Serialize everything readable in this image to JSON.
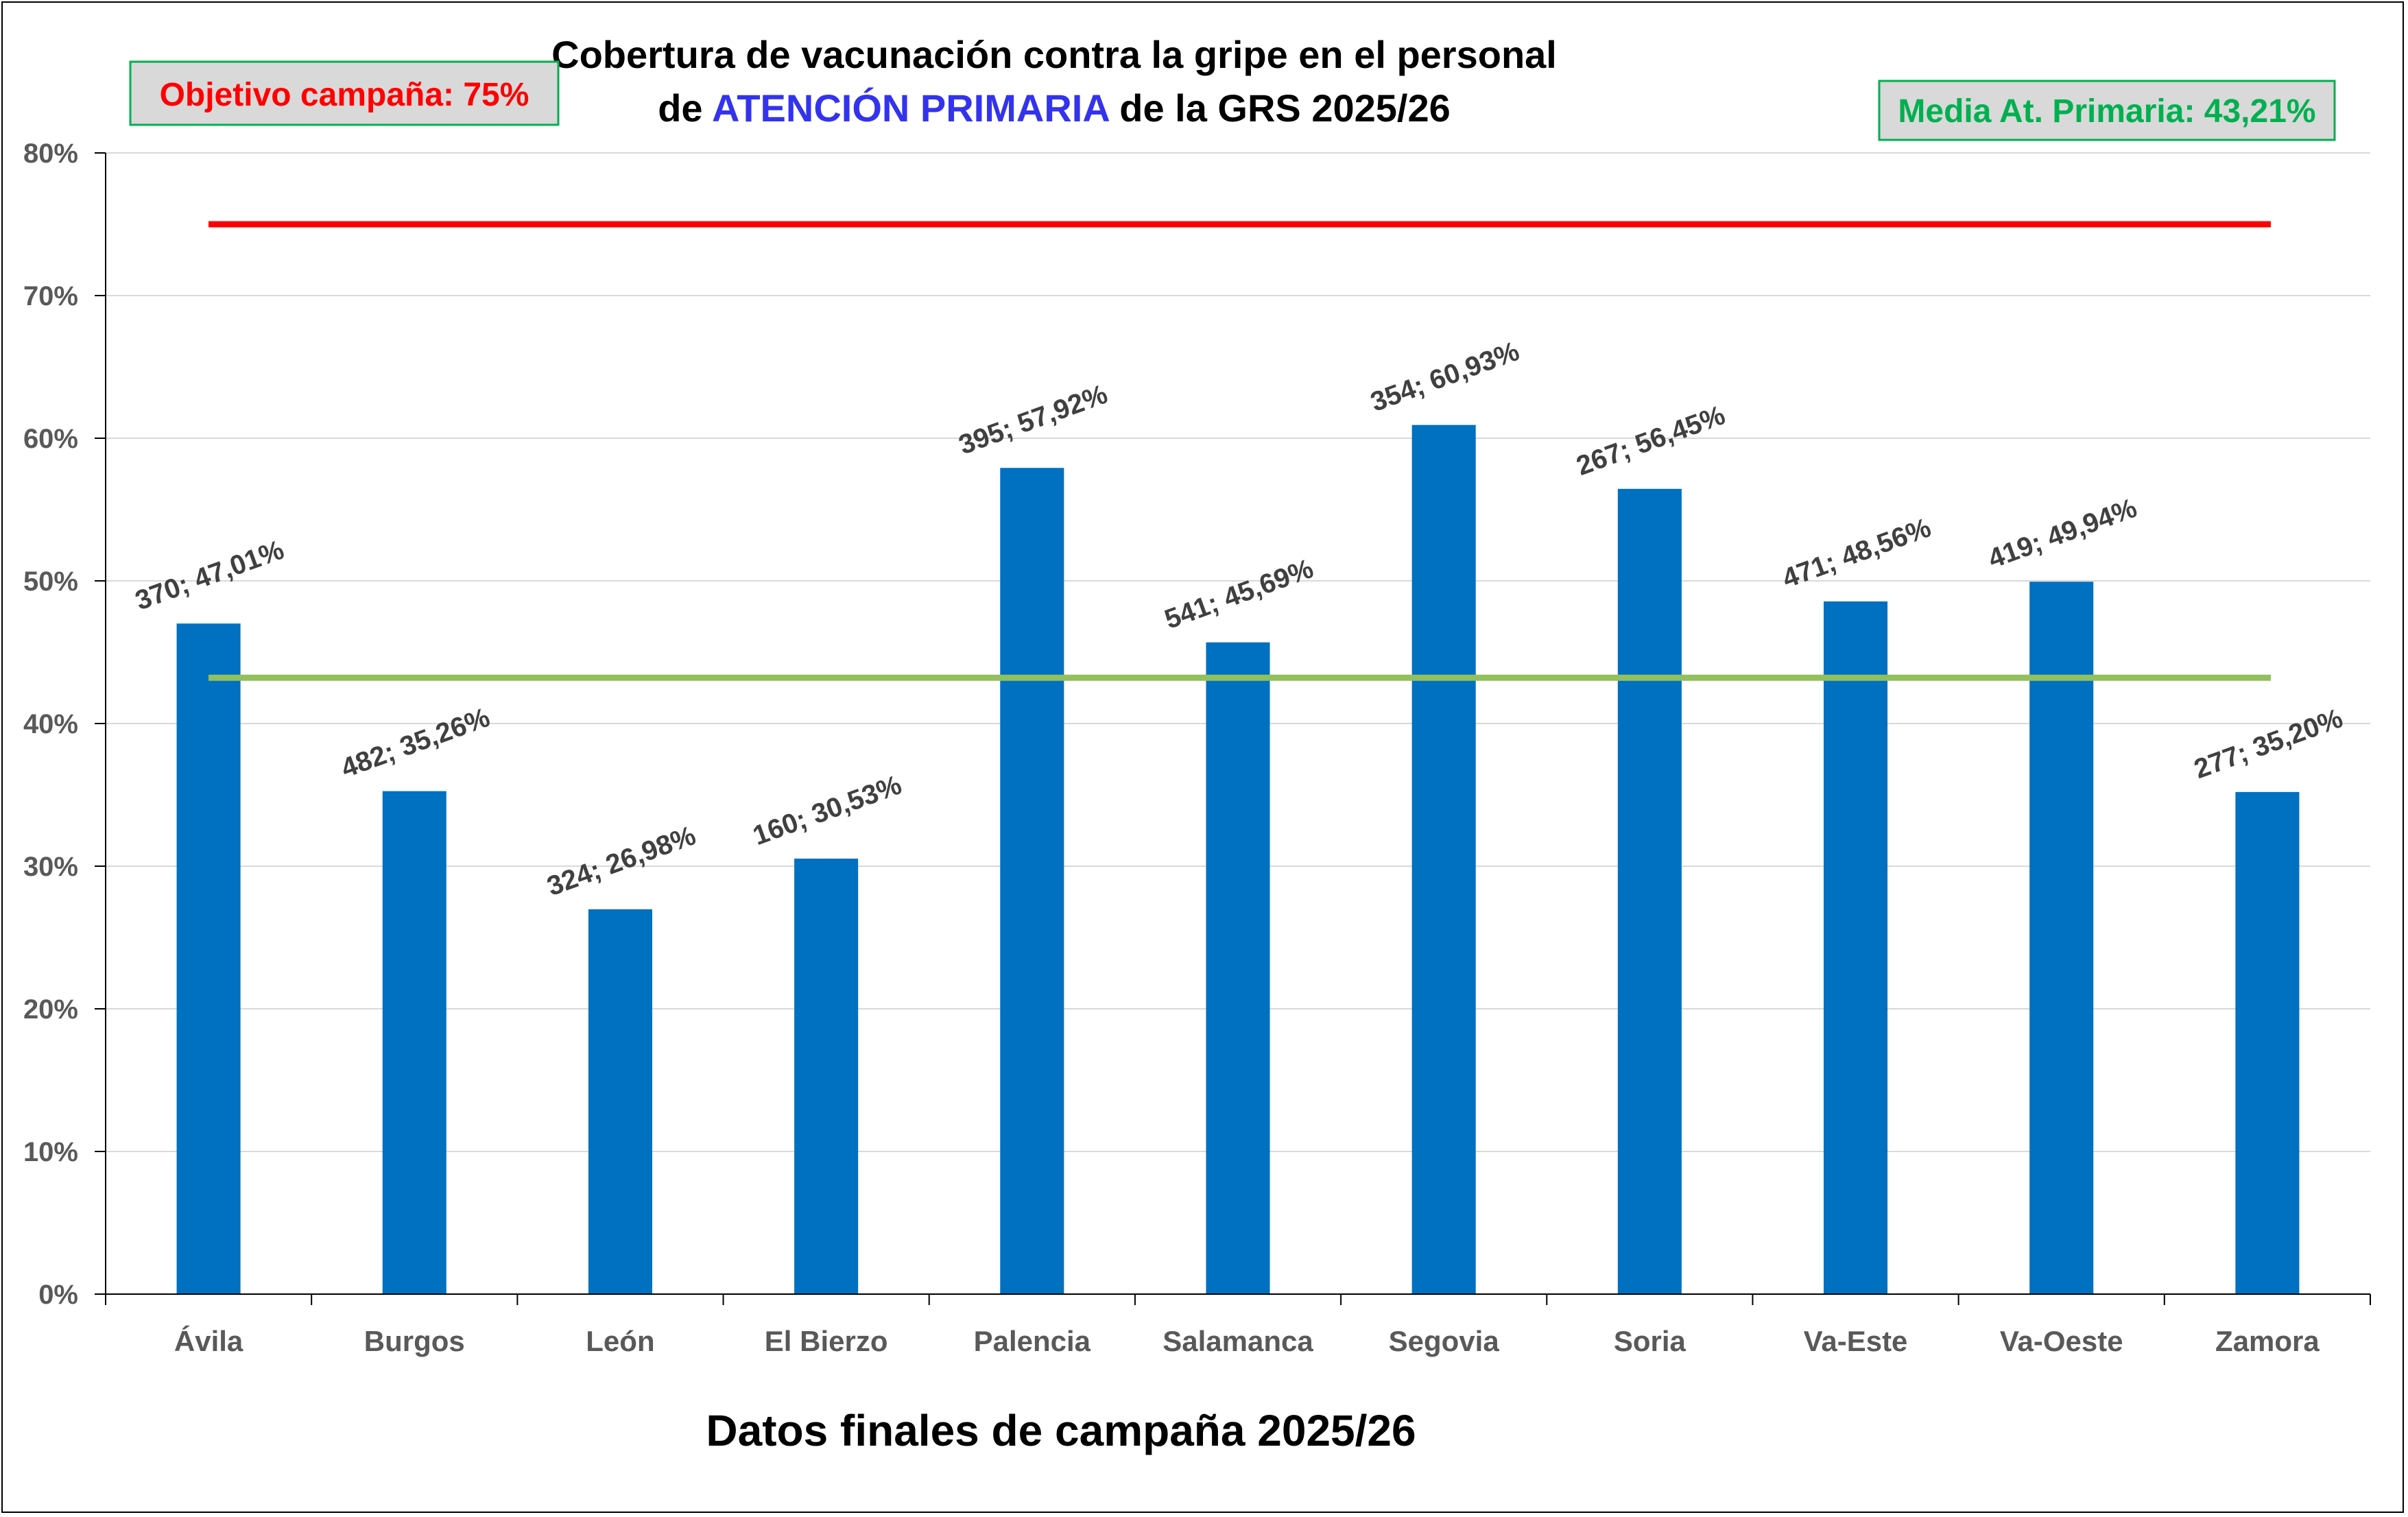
{
  "chart_data": {
    "type": "bar",
    "title_line1": "Cobertura de vacunación contra la gripe en el personal",
    "title_line2_pre": "de ",
    "title_line2_accent": "ATENCIÓN PRIMARIA",
    "title_line2_post": " de la GRS 2025/26",
    "xlabel": "Datos finales de campaña 2025/26",
    "ylabel": "",
    "ylim": [
      0,
      80
    ],
    "yticks": [
      0,
      10,
      20,
      30,
      40,
      50,
      60,
      70,
      80
    ],
    "ytick_labels": [
      "0%",
      "10%",
      "20%",
      "30%",
      "40%",
      "50%",
      "60%",
      "70%",
      "80%"
    ],
    "grid": true,
    "categories": [
      "Ávila",
      "Burgos",
      "León",
      "El Bierzo",
      "Palencia",
      "Salamanca",
      "Segovia",
      "Soria",
      "Va-Este",
      "Va-Oeste",
      "Zamora"
    ],
    "values": [
      47.01,
      35.26,
      26.98,
      30.53,
      57.92,
      45.69,
      60.93,
      56.45,
      48.56,
      49.94,
      35.2
    ],
    "data_labels": [
      "370; 47,01%",
      "482; 35,26%",
      "324; 26,98%",
      "160; 30,53%",
      "395; 57,92%",
      "541; 45,69%",
      "354; 60,93%",
      "267; 56,45%",
      "471; 48,56%",
      "419; 49,94%",
      "277; 35,20%"
    ],
    "bar_color": "#0070c0",
    "reference_lines": [
      {
        "value": 75,
        "color": "#ff0000"
      },
      {
        "value": 43.21,
        "color": "#92c05a"
      }
    ],
    "annotations": [
      {
        "text": "Objetivo campaña: 75%",
        "color": "#ff0000",
        "position": "top-left"
      },
      {
        "text": "Media At. Primaria: 43,21%",
        "color": "#00b050",
        "position": "top-right"
      }
    ]
  }
}
